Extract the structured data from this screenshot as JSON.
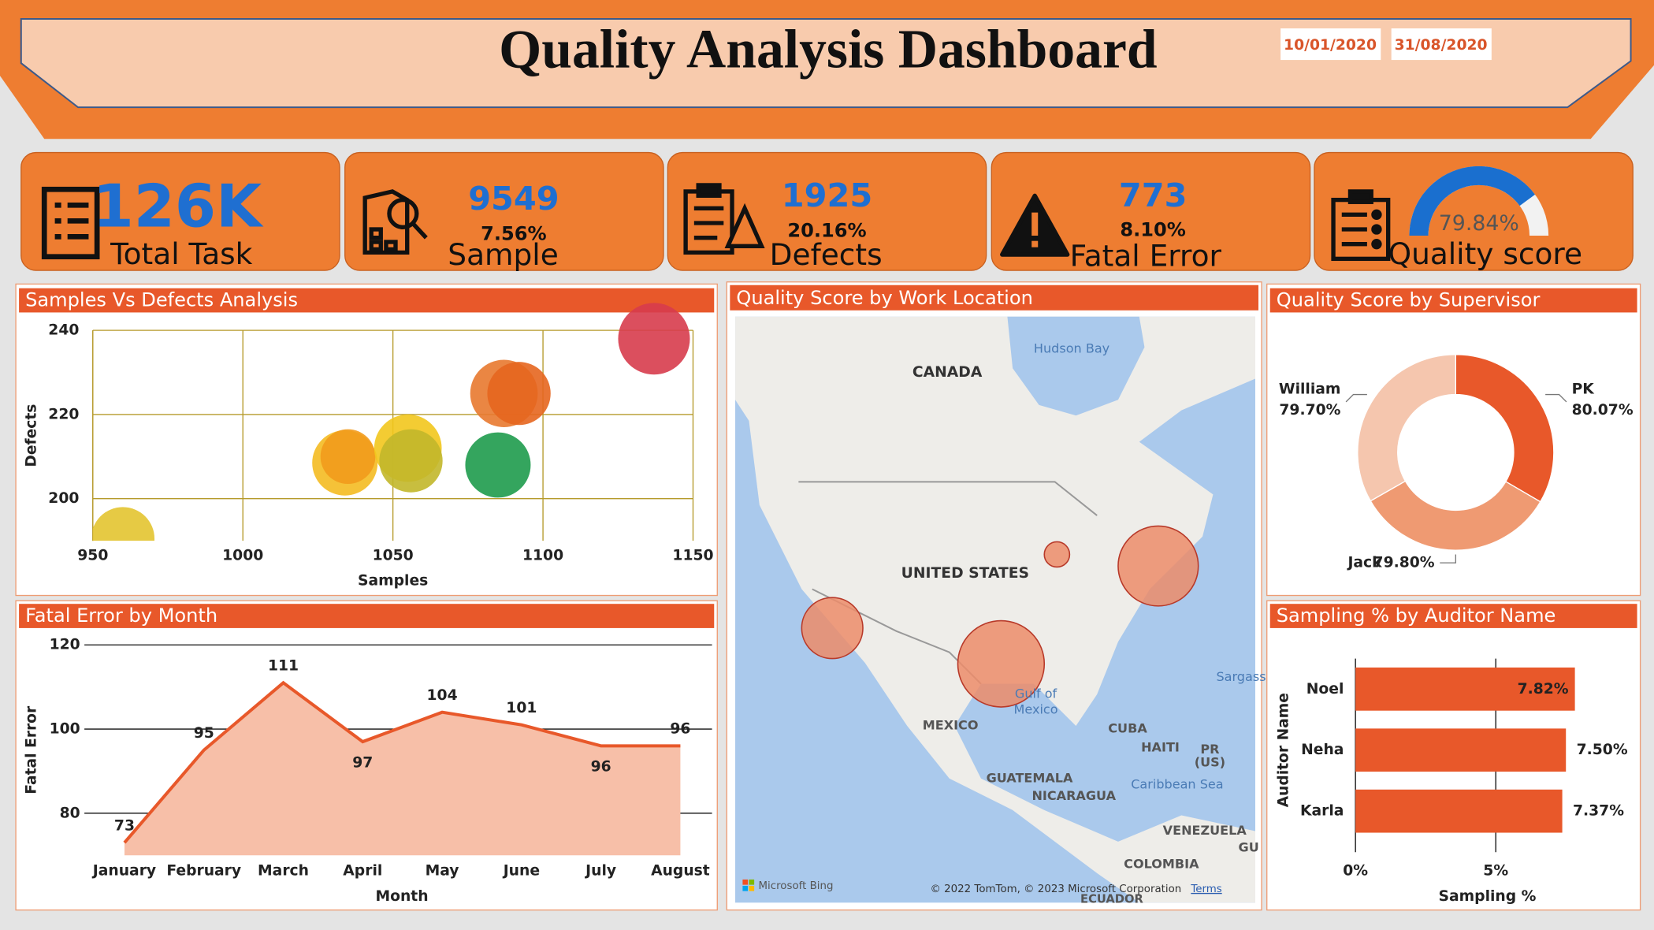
{
  "header": {
    "title": "Quality Analysis Dashboard",
    "date_from": "10/01/2020",
    "date_to": "31/08/2020"
  },
  "kpis": [
    {
      "value": "126K",
      "label": "Total Task"
    },
    {
      "value": "9549",
      "share": "7.56%",
      "label": "Sample"
    },
    {
      "value": "1925",
      "share": "20.16%",
      "label": "Defects"
    },
    {
      "value": "773",
      "share": "8.10%",
      "label": "Fatal Error"
    }
  ],
  "map": {
    "title": "Quality Score by Work Location",
    "labels": [
      "Hudson Bay",
      "CANADA",
      "UNITED STATES",
      "MEXICO",
      "Gulf of",
      "Mexico",
      "CUBA",
      "HAITI",
      "PR",
      "(US)",
      "GUATEMALA",
      "NICARAGUA",
      "Caribbean Sea",
      "VENEZUELA",
      "COLOMBIA",
      "ECUADOR",
      "Sargass",
      "GU",
      "Microsoft Bing",
      "© 2022 TomTom, © 2023 Microsoft Corporation",
      "Terms"
    ]
  },
  "chart_data": [
    {
      "type": "scatter",
      "title": "Samples Vs Defects Analysis",
      "x_label": "Samples",
      "y_label": "Defects",
      "x": [
        960,
        1034,
        1035,
        1055,
        1056,
        1087,
        1092,
        1085,
        1137
      ],
      "y": [
        190.5,
        208.5,
        210,
        212,
        209,
        225,
        225,
        208,
        238
      ],
      "sizes": [
        900,
        961,
        676,
        1024,
        900,
        1024,
        900,
        961,
        1156
      ],
      "colors": [
        "#e3c430",
        "#f4bb22",
        "#f29b1c",
        "#f2c71d",
        "#c2b72a",
        "#e8792f",
        "#e5661f",
        "#1e9b4c",
        "#d73c4c"
      ],
      "xlim": [
        950,
        1150
      ],
      "xticks": [
        950,
        1000,
        1050,
        1100,
        1150
      ],
      "ylim": [
        190,
        240
      ],
      "yticks": [
        200,
        220,
        240
      ],
      "grid": true
    },
    {
      "type": "area",
      "title": "Fatal Error by Month",
      "x_label": "Month",
      "y_label": "Fatal Error",
      "categories": [
        "January",
        "February",
        "March",
        "April",
        "May",
        "June",
        "July",
        "August"
      ],
      "values": [
        73,
        95,
        111,
        97,
        104,
        101,
        96,
        96
      ],
      "ylim": [
        70,
        120
      ],
      "yticks": [
        80,
        100,
        120
      ],
      "color": "#e8582a",
      "fill_color": "#f7bfa8",
      "grid": true
    },
    {
      "type": "donut",
      "title": "Quality Score by Supervisor",
      "categories": [
        "PK",
        "Jack",
        "William"
      ],
      "values": [
        80.07,
        79.8,
        79.7
      ],
      "value_labels": [
        "80.07%",
        "79.80%",
        "79.70%"
      ],
      "colors": [
        "#e8582a",
        "#ef9a72",
        "#f5c6ae"
      ]
    },
    {
      "type": "hbar",
      "title": "Sampling % by Auditor Name",
      "x_label": "Sampling %",
      "y_label": "Auditor Name",
      "categories": [
        "Noel",
        "Neha",
        "Karla"
      ],
      "values": [
        7.82,
        7.5,
        7.37
      ],
      "value_labels": [
        "7.82%",
        "7.50%",
        "7.37%"
      ],
      "xlim": [
        0,
        10
      ],
      "xticks": [
        {
          "value": 0,
          "label": "0%"
        },
        {
          "value": 5,
          "label": "5%"
        }
      ],
      "color": "#e8582a",
      "grid": true
    },
    {
      "type": "gauge",
      "title": "Quality score",
      "value": 79.84,
      "value_label": "79.84%",
      "ylim": [
        0,
        100
      ],
      "color": "#1a6fcf"
    }
  ]
}
